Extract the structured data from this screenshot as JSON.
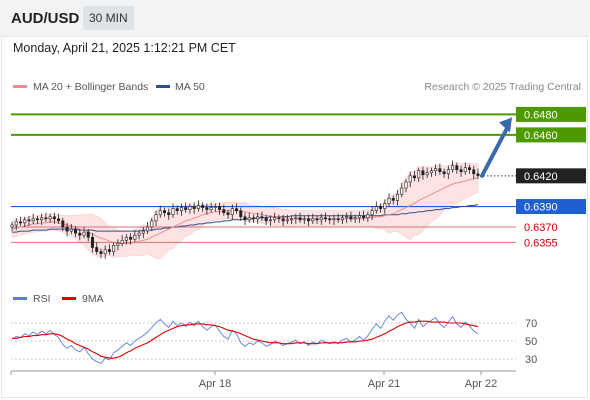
{
  "header": {
    "symbol": "AUD/USD",
    "interval": "30 MIN",
    "datetime": "Monday, April 21, 2025 1:12:21 PM CET"
  },
  "price_panel": {
    "legend": [
      {
        "label": "MA 20 + Bollinger Bands",
        "color": "#f08b8b"
      },
      {
        "label": "MA 50",
        "color": "#2f4f8f"
      }
    ],
    "copyright": "Research © 2025 Trading Central"
  },
  "rsi_panel": {
    "legend": [
      {
        "label": "RSI",
        "color": "#5b7fd6"
      },
      {
        "label": "9MA",
        "color": "#e00000"
      }
    ]
  },
  "colors": {
    "up_candle": "#ffffff",
    "down_candle": "#222222",
    "target_level": "#4c9a00",
    "pivot_level": "#1f5fd0",
    "support_level": "#e07070",
    "bollinger_fill": "#fde3e3",
    "arrow": "#3a6aaa",
    "current_price_bg": "#222222"
  },
  "chart_data": [
    {
      "type": "candlestick",
      "title": "AUD/USD",
      "ylim": [
        0.6328,
        0.6498
      ],
      "x_tick_labels": [
        "Apr 18",
        "Apr 21",
        "Apr 22"
      ],
      "levels": [
        {
          "value": 0.648,
          "label": "0.6480",
          "kind": "target"
        },
        {
          "value": 0.646,
          "label": "0.6460",
          "kind": "target"
        },
        {
          "value": 0.642,
          "label": "0.6420",
          "kind": "current"
        },
        {
          "value": 0.639,
          "label": "0.6390",
          "kind": "pivot"
        },
        {
          "value": 0.637,
          "label": "0.6370",
          "kind": "support"
        },
        {
          "value": 0.6355,
          "label": "0.6355",
          "kind": "support"
        }
      ],
      "close": [
        0.6372,
        0.6375,
        0.6374,
        0.6377,
        0.6376,
        0.6378,
        0.6377,
        0.6379,
        0.6378,
        0.638,
        0.6378,
        0.6376,
        0.637,
        0.6366,
        0.6368,
        0.6364,
        0.6362,
        0.6365,
        0.636,
        0.635,
        0.6346,
        0.6344,
        0.6348,
        0.6346,
        0.6352,
        0.6354,
        0.6357,
        0.636,
        0.6358,
        0.6362,
        0.6364,
        0.6366,
        0.637,
        0.6376,
        0.6382,
        0.6386,
        0.6384,
        0.6382,
        0.6388,
        0.6386,
        0.6389,
        0.6387,
        0.639,
        0.6388,
        0.6391,
        0.6389,
        0.6387,
        0.6389,
        0.639,
        0.6387,
        0.6384,
        0.6382,
        0.6388,
        0.6386,
        0.638,
        0.6377,
        0.6379,
        0.6378,
        0.638,
        0.6379,
        0.6376,
        0.6377,
        0.6379,
        0.6378,
        0.6376,
        0.6377,
        0.6378,
        0.6379,
        0.6377,
        0.6378,
        0.6376,
        0.6378,
        0.6377,
        0.6379,
        0.6378,
        0.6377,
        0.6378,
        0.6377,
        0.6379,
        0.638,
        0.6378,
        0.6379,
        0.6381,
        0.6379,
        0.6382,
        0.6386,
        0.639,
        0.6388,
        0.6393,
        0.6398,
        0.6396,
        0.6402,
        0.6408,
        0.6414,
        0.642,
        0.6418,
        0.6425,
        0.6421,
        0.6423,
        0.6425,
        0.6427,
        0.6424,
        0.6422,
        0.6426,
        0.643,
        0.6426,
        0.6424,
        0.6428,
        0.6426,
        0.6422,
        0.642
      ],
      "ma20": [
        0.6368,
        0.6369,
        0.637,
        0.6371,
        0.6372,
        0.6373,
        0.6373,
        0.6374,
        0.6374,
        0.6375,
        0.6375,
        0.6374,
        0.6373,
        0.6372,
        0.6371,
        0.637,
        0.6368,
        0.6367,
        0.6365,
        0.6363,
        0.6361,
        0.6359,
        0.6358,
        0.6356,
        0.6355,
        0.6354,
        0.6354,
        0.6354,
        0.6354,
        0.6355,
        0.6356,
        0.6357,
        0.6358,
        0.636,
        0.6362,
        0.6364,
        0.6366,
        0.6368,
        0.637,
        0.6372,
        0.6374,
        0.6376,
        0.6377,
        0.6379,
        0.638,
        0.6382,
        0.6383,
        0.6384,
        0.6385,
        0.6385,
        0.6386,
        0.6386,
        0.6386,
        0.6386,
        0.6385,
        0.6385,
        0.6384,
        0.6383,
        0.6383,
        0.6382,
        0.6381,
        0.6381,
        0.638,
        0.638,
        0.6379,
        0.6379,
        0.6378,
        0.6378,
        0.6378,
        0.6378,
        0.6378,
        0.6378,
        0.6378,
        0.6378,
        0.6378,
        0.6378,
        0.6378,
        0.6378,
        0.6378,
        0.6378,
        0.6378,
        0.6378,
        0.6378,
        0.6378,
        0.6379,
        0.6379,
        0.638,
        0.638,
        0.6381,
        0.6382,
        0.6383,
        0.6385,
        0.6387,
        0.6389,
        0.6391,
        0.6393,
        0.6396,
        0.6398,
        0.64,
        0.6402,
        0.6404,
        0.6406,
        0.6408,
        0.641,
        0.6412,
        0.6413,
        0.6414,
        0.6415,
        0.6416,
        0.6417,
        0.6418
      ],
      "ma50": [
        0.6365,
        0.6365,
        0.6366,
        0.6366,
        0.6366,
        0.6367,
        0.6367,
        0.6367,
        0.6367,
        0.6368,
        0.6368,
        0.6368,
        0.6368,
        0.6368,
        0.6368,
        0.6368,
        0.6367,
        0.6367,
        0.6367,
        0.6367,
        0.6366,
        0.6366,
        0.6366,
        0.6366,
        0.6366,
        0.6366,
        0.6366,
        0.6366,
        0.6366,
        0.6366,
        0.6366,
        0.6367,
        0.6367,
        0.6367,
        0.6368,
        0.6368,
        0.6369,
        0.6369,
        0.637,
        0.637,
        0.6371,
        0.6371,
        0.6372,
        0.6372,
        0.6373,
        0.6373,
        0.6374,
        0.6374,
        0.6375,
        0.6375,
        0.6376,
        0.6376,
        0.6377,
        0.6377,
        0.6377,
        0.6378,
        0.6378,
        0.6378,
        0.6379,
        0.6379,
        0.6379,
        0.638,
        0.638,
        0.638,
        0.638,
        0.638,
        0.6381,
        0.6381,
        0.6381,
        0.6381,
        0.6381,
        0.6381,
        0.6381,
        0.6381,
        0.6381,
        0.6381,
        0.6381,
        0.6381,
        0.6381,
        0.6381,
        0.6381,
        0.6381,
        0.6381,
        0.6381,
        0.6381,
        0.6381,
        0.6381,
        0.6381,
        0.6382,
        0.6382,
        0.6382,
        0.6382,
        0.6383,
        0.6383,
        0.6384,
        0.6384,
        0.6385,
        0.6385,
        0.6386,
        0.6386,
        0.6387,
        0.6387,
        0.6388,
        0.6388,
        0.6389,
        0.6389,
        0.639,
        0.639,
        0.6391,
        0.6391,
        0.6392
      ],
      "forecast_arrow": {
        "from": 0.642,
        "to": 0.648
      }
    },
    {
      "type": "line",
      "title": "RSI",
      "ylim": [
        20,
        80
      ],
      "y_tick_labels": [
        "70",
        "50",
        "30"
      ],
      "reference_lines": [
        70,
        50,
        30
      ],
      "series": [
        {
          "name": "RSI",
          "values": [
            52,
            55,
            54,
            58,
            56,
            60,
            57,
            61,
            58,
            62,
            57,
            54,
            46,
            42,
            45,
            40,
            38,
            43,
            36,
            30,
            27,
            25,
            31,
            29,
            37,
            40,
            44,
            48,
            45,
            50,
            53,
            56,
            60,
            65,
            70,
            74,
            69,
            65,
            72,
            67,
            70,
            66,
            71,
            67,
            72,
            66,
            62,
            66,
            68,
            61,
            55,
            52,
            62,
            58,
            48,
            44,
            48,
            46,
            50,
            48,
            44,
            46,
            50,
            48,
            45,
            47,
            49,
            51,
            47,
            49,
            45,
            49,
            47,
            51,
            49,
            47,
            49,
            47,
            51,
            53,
            49,
            51,
            55,
            51,
            56,
            63,
            69,
            64,
            72,
            78,
            73,
            79,
            82,
            74,
            70,
            64,
            74,
            66,
            70,
            73,
            76,
            69,
            65,
            71,
            77,
            69,
            65,
            71,
            67,
            61,
            58
          ]
        },
        {
          "name": "9MA",
          "values": [
            53,
            53,
            54,
            55,
            55,
            56,
            56,
            57,
            57,
            58,
            58,
            57,
            55,
            52,
            50,
            47,
            45,
            43,
            41,
            38,
            36,
            33,
            32,
            31,
            31,
            32,
            34,
            37,
            39,
            42,
            44,
            46,
            48,
            51,
            54,
            57,
            60,
            62,
            64,
            66,
            67,
            68,
            68,
            69,
            69,
            69,
            68,
            68,
            67,
            66,
            64,
            62,
            61,
            60,
            58,
            56,
            54,
            52,
            51,
            50,
            49,
            48,
            48,
            48,
            47,
            47,
            47,
            48,
            48,
            48,
            47,
            47,
            47,
            48,
            48,
            48,
            48,
            48,
            48,
            49,
            49,
            49,
            50,
            50,
            51,
            52,
            54,
            56,
            58,
            61,
            63,
            66,
            68,
            70,
            71,
            71,
            72,
            72,
            72,
            71,
            71,
            71,
            71,
            70,
            70,
            70,
            70,
            69,
            68,
            67,
            66
          ]
        }
      ]
    }
  ]
}
